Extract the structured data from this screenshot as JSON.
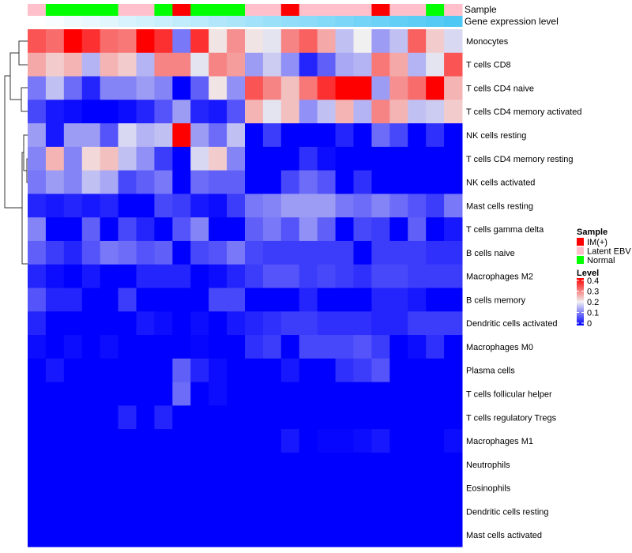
{
  "chart_data": {
    "type": "heatmap",
    "title": "",
    "rows": [
      "Monocytes",
      "T cells CD8",
      "T cells CD4 naive",
      "T cells CD4 memory activated",
      "NK cells resting",
      "T cells CD4 memory resting",
      "NK cells activated",
      "Mast cells resting",
      "T cells gamma delta",
      "B cells naive",
      "Macrophages M2",
      "B cells memory",
      "Dendritic cells activated",
      "Macrophages M0",
      "Plasma cells",
      "T cells follicular helper",
      "T cells regulatory  Tregs",
      "Macrophages M1",
      "Neutrophils",
      "Eosinophils",
      "Dendritic cells resting",
      "Mast cells activated"
    ],
    "column_annotations": {
      "sample_label": "Sample",
      "sample": [
        "Latent EBV",
        "Normal",
        "Normal",
        "Normal",
        "Normal",
        "Latent EBV",
        "Latent EBV",
        "Normal",
        "IM(+)",
        "Normal",
        "Normal",
        "Normal",
        "Latent EBV",
        "Latent EBV",
        "IM(+)",
        "Latent EBV",
        "Latent EBV",
        "Latent EBV",
        "Latent EBV",
        "IM(+)",
        "Latent EBV",
        "Latent EBV",
        "Normal",
        "Latent EBV"
      ],
      "gene_label": "Gene expression level",
      "gene_expression_level": [
        0,
        0.04,
        0.09,
        0.13,
        0.17,
        0.22,
        0.26,
        0.3,
        0.35,
        0.39,
        0.43,
        0.48,
        0.52,
        0.57,
        0.61,
        0.65,
        0.7,
        0.74,
        0.78,
        0.83,
        0.87,
        0.91,
        0.96,
        1.0
      ]
    },
    "values": [
      [
        0.33,
        0.31,
        0.4,
        0.36,
        0.31,
        0.3,
        0.4,
        0.36,
        0.1,
        0.36,
        0.21,
        0.28,
        0.21,
        0.19,
        0.29,
        0.32,
        0.26,
        0.16,
        0.2,
        0.13,
        0.16,
        0.32,
        0.23,
        0.18
      ],
      [
        0.26,
        0.23,
        0.25,
        0.15,
        0.25,
        0.23,
        0.15,
        0.29,
        0.29,
        0.19,
        0.29,
        0.27,
        0.13,
        0.17,
        0.12,
        0.03,
        0.08,
        0.14,
        0.15,
        0.3,
        0.26,
        0.15,
        0.19,
        0.33
      ],
      [
        0.1,
        0.16,
        0.09,
        0.03,
        0.11,
        0.11,
        0.13,
        0.11,
        0.0,
        0.08,
        0.21,
        0.12,
        0.33,
        0.29,
        0.24,
        0.3,
        0.36,
        0.4,
        0.4,
        0.13,
        0.28,
        0.31,
        0.4,
        0.25
      ],
      [
        0.06,
        0.02,
        0.01,
        0.0,
        0.0,
        0.01,
        0.03,
        0.07,
        0.13,
        0.03,
        0.02,
        0.07,
        0.25,
        0.19,
        0.24,
        0.12,
        0.16,
        0.25,
        0.15,
        0.29,
        0.25,
        0.16,
        0.17,
        0.23
      ],
      [
        0.13,
        0.02,
        0.13,
        0.13,
        0.07,
        0.18,
        0.15,
        0.16,
        0.4,
        0.13,
        0.09,
        0.16,
        0.0,
        0.05,
        0.0,
        0.0,
        0.0,
        0.03,
        0.0,
        0.09,
        0.06,
        0.0,
        0.04,
        0.0
      ],
      [
        0.11,
        0.25,
        0.11,
        0.22,
        0.24,
        0.16,
        0.12,
        0.05,
        0.0,
        0.18,
        0.23,
        0.11,
        0.0,
        0.0,
        0.0,
        0.04,
        0.01,
        0.0,
        0.0,
        0.0,
        0.0,
        0.0,
        0.0,
        0.0
      ],
      [
        0.1,
        0.13,
        0.11,
        0.16,
        0.14,
        0.06,
        0.08,
        0.1,
        0.0,
        0.09,
        0.08,
        0.08,
        0.0,
        0.0,
        0.06,
        0.09,
        0.07,
        0.0,
        0.04,
        0.0,
        0.0,
        0.0,
        0.0,
        0.0
      ],
      [
        0.03,
        0.02,
        0.03,
        0.02,
        0.03,
        0.0,
        0.0,
        0.06,
        0.05,
        0.02,
        0.01,
        0.05,
        0.1,
        0.11,
        0.13,
        0.13,
        0.13,
        0.1,
        0.09,
        0.11,
        0.09,
        0.07,
        0.05,
        0.1
      ],
      [
        0.11,
        0.0,
        0.0,
        0.08,
        0.0,
        0.06,
        0.03,
        0.0,
        0.07,
        0.11,
        0.0,
        0.0,
        0.08,
        0.1,
        0.07,
        0.12,
        0.08,
        0.0,
        0.06,
        0.05,
        0.0,
        0.08,
        0.0,
        0.02
      ],
      [
        0.08,
        0.05,
        0.03,
        0.07,
        0.1,
        0.09,
        0.07,
        0.08,
        0.0,
        0.06,
        0.07,
        0.1,
        0.06,
        0.05,
        0.05,
        0.05,
        0.05,
        0.05,
        0.0,
        0.05,
        0.05,
        0.05,
        0.04,
        0.04
      ],
      [
        0.03,
        0.01,
        0.0,
        0.02,
        0.0,
        0.0,
        0.03,
        0.03,
        0.03,
        0.0,
        0.01,
        0.03,
        0.05,
        0.07,
        0.07,
        0.05,
        0.06,
        0.05,
        0.04,
        0.06,
        0.06,
        0.05,
        0.05,
        0.05
      ],
      [
        0.07,
        0.03,
        0.03,
        0.0,
        0.0,
        0.05,
        0.0,
        0.0,
        0.0,
        0.0,
        0.06,
        0.06,
        0.0,
        0.0,
        0.0,
        0.03,
        0.0,
        0.0,
        0.0,
        0.03,
        0.03,
        0.02,
        0.0,
        0.0
      ],
      [
        0.03,
        0.0,
        0.0,
        0.0,
        0.0,
        0.0,
        0.02,
        0.01,
        0.0,
        0.01,
        0.0,
        0.02,
        0.03,
        0.04,
        0.05,
        0.05,
        0.04,
        0.04,
        0.04,
        0.03,
        0.03,
        0.05,
        0.05,
        0.05
      ],
      [
        0.01,
        0.0,
        0.01,
        0.0,
        0.01,
        0.0,
        0.0,
        0.0,
        0.0,
        0.005,
        0.0,
        0.0,
        0.04,
        0.05,
        0.0,
        0.06,
        0.06,
        0.06,
        0.07,
        0.05,
        0.0,
        0.01,
        0.04,
        0.0
      ],
      [
        0.0,
        0.02,
        0.0,
        0.0,
        0.0,
        0.0,
        0.0,
        0.0,
        0.08,
        0.03,
        0.01,
        0.0,
        0.0,
        0.0,
        0.02,
        0.0,
        0.0,
        0.04,
        0.05,
        0.07,
        0.0,
        0.0,
        0.0,
        0.0
      ],
      [
        0.0,
        0.0,
        0.0,
        0.0,
        0.0,
        0.0,
        0.0,
        0.0,
        0.09,
        0.0,
        0.01,
        0.0,
        0.0,
        0.0,
        0.0,
        0.0,
        0.0,
        0.0,
        0.0,
        0.0,
        0.0,
        0.0,
        0.0,
        0.0
      ],
      [
        0.0,
        0.0,
        0.0,
        0.0,
        0.0,
        0.03,
        0.0,
        0.03,
        0.0,
        0.0,
        0.0,
        0.0,
        0.0,
        0.0,
        0.0,
        0.0,
        0.0,
        0.0,
        0.0,
        0.0,
        0.0,
        0.0,
        0.0,
        0.0
      ],
      [
        0.0,
        0.0,
        0.0,
        0.0,
        0.0,
        0.0,
        0.0,
        0.0,
        0.0,
        0.0,
        0.0,
        0.0,
        0.0,
        0.0,
        0.02,
        0.0,
        0.005,
        0.005,
        0.01,
        0.02,
        0.0,
        0.0,
        0.0,
        0.01
      ],
      [
        0,
        0,
        0,
        0,
        0,
        0,
        0,
        0,
        0,
        0,
        0,
        0,
        0,
        0,
        0,
        0,
        0,
        0,
        0,
        0,
        0,
        0,
        0,
        0
      ],
      [
        0,
        0,
        0,
        0,
        0,
        0,
        0,
        0,
        0,
        0,
        0,
        0,
        0,
        0,
        0,
        0,
        0,
        0,
        0,
        0,
        0,
        0,
        0,
        0
      ],
      [
        0,
        0,
        0,
        0,
        0,
        0,
        0,
        0,
        0,
        0,
        0,
        0,
        0,
        0,
        0,
        0,
        0,
        0,
        0,
        0,
        0,
        0,
        0,
        0
      ],
      [
        0,
        0,
        0,
        0,
        0,
        0,
        0,
        0,
        0,
        0,
        0,
        0,
        0,
        0,
        0,
        0,
        0,
        0,
        0,
        0,
        0,
        0,
        0,
        0
      ]
    ],
    "color_scale": {
      "low": "#0000FF",
      "mid": "#F0F0F0",
      "high": "#FF0000",
      "range": [
        0,
        0.4
      ]
    },
    "legend": {
      "placement": "right",
      "sample_title": "Sample",
      "sample_items": [
        {
          "label": "IM(+)",
          "color": "#FF0000"
        },
        {
          "label": "Latent EBV",
          "color": "#FFC0CB"
        },
        {
          "label": "Normal",
          "color": "#00FF00"
        }
      ],
      "level_title": "Level",
      "level_ticks": [
        "0.4",
        "0.3",
        "0.2",
        "0.1",
        "0"
      ]
    },
    "gene_color": {
      "low": "#FFFFFF",
      "high": "#4DC8F5"
    }
  }
}
